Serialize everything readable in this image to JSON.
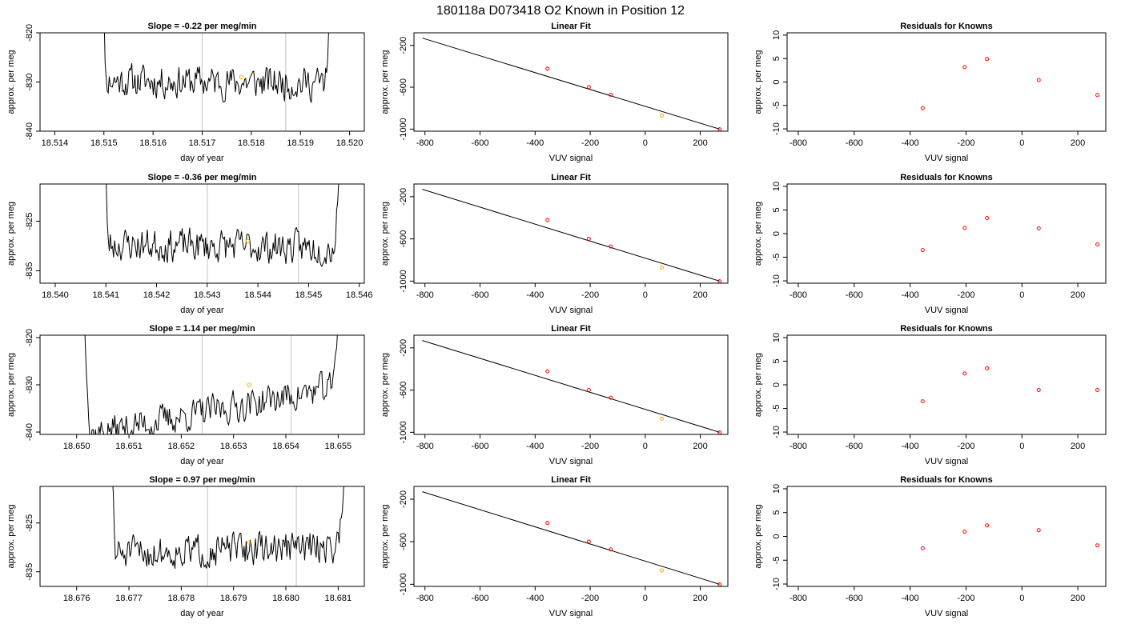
{
  "figure": {
    "title": "180118a     D073418   O2 Known in Position  12",
    "colors": {
      "trace": "#000000",
      "marker_line": "#cccccc",
      "point": "#ff0000",
      "highlight": "#ffa500",
      "axis": "#000000"
    }
  },
  "chart_data": [
    {
      "type": "line",
      "row": 0,
      "col": 0,
      "title": "Slope =  -0.22  per meg/min",
      "xlabel": "day of year",
      "ylabel": "approx. per meg",
      "xlim": [
        18.5137,
        18.5203
      ],
      "ylim": [
        -840,
        -820
      ],
      "xticks": [
        18.514,
        18.515,
        18.516,
        18.517,
        18.518,
        18.519,
        18.52
      ],
      "xtick_labels": [
        "18.514",
        "18.515",
        "18.516",
        "18.517",
        "18.518",
        "18.519",
        "18.520"
      ],
      "yticks": [
        -820,
        -830,
        -840
      ],
      "ytick_labels": [
        "-820",
        "-830",
        "-840"
      ],
      "x_start": 18.5149,
      "x_end": 18.5197,
      "y_baseline": -830,
      "trend": -0.6,
      "vlines": [
        18.517,
        18.5187
      ],
      "highlight_point": {
        "x": 18.5178,
        "y": -829
      },
      "seed": 11
    },
    {
      "type": "scatter",
      "row": 0,
      "col": 1,
      "title": "Linear Fit",
      "xlabel": "VUV signal",
      "ylabel": "approx. per meg",
      "xlim": [
        -840,
        300
      ],
      "ylim": [
        -1020,
        -80
      ],
      "xticks": [
        -800,
        -600,
        -400,
        -200,
        0,
        200
      ],
      "xtick_labels": [
        "-800",
        "-600",
        "-400",
        "-200",
        "0",
        "200"
      ],
      "yticks": [
        -200,
        -600,
        -1000
      ],
      "ytick_labels": [
        "-200",
        "-600",
        "-1000"
      ],
      "fit_line": {
        "x": [
          -810,
          270
        ],
        "y": [
          -130,
          -1000
        ]
      },
      "x": [
        -355,
        -205,
        -125,
        60,
        270
      ],
      "y": [
        -423,
        -599,
        -672,
        -871,
        -1002
      ],
      "highlight_index": 3
    },
    {
      "type": "scatter",
      "row": 0,
      "col": 2,
      "title": "Residuals for Knowns",
      "xlabel": "VUV signal",
      "ylabel": "approx. per meg",
      "xlim": [
        -840,
        300
      ],
      "ylim": [
        -10.5,
        10.5
      ],
      "xticks": [
        -800,
        -600,
        -400,
        -200,
        0,
        200
      ],
      "xtick_labels": [
        "-800",
        "-600",
        "-400",
        "-200",
        "0",
        "200"
      ],
      "yticks": [
        10,
        5,
        0,
        -5,
        -10
      ],
      "ytick_labels": [
        "10",
        "5",
        "0",
        "-5",
        "-10"
      ],
      "x": [
        -355,
        -205,
        -125,
        60,
        270
      ],
      "y": [
        -5.6,
        3.2,
        4.9,
        0.4,
        -2.8
      ]
    },
    {
      "type": "line",
      "row": 1,
      "col": 0,
      "title": "Slope =  -0.36  per meg/min",
      "xlabel": "day of year",
      "ylabel": "approx. per meg",
      "xlim": [
        18.5397,
        18.5461
      ],
      "ylim": [
        -837.5,
        -817.5
      ],
      "xticks": [
        18.54,
        18.541,
        18.542,
        18.543,
        18.544,
        18.545,
        18.546
      ],
      "xtick_labels": [
        "18.540",
        "18.541",
        "18.542",
        "18.543",
        "18.544",
        "18.545",
        "18.546"
      ],
      "yticks": [
        -825,
        -835
      ],
      "ytick_labels": [
        "-825",
        "-835"
      ],
      "x_start": 18.5409,
      "x_end": 18.5457,
      "y_baseline": -830,
      "trend": -0.8,
      "vlines": [
        18.543,
        18.5448
      ],
      "highlight_point": {
        "x": 18.5438,
        "y": -829
      },
      "seed": 23
    },
    {
      "type": "scatter",
      "row": 1,
      "col": 1,
      "title": "Linear Fit",
      "xlabel": "VUV signal",
      "ylabel": "approx. per meg",
      "xlim": [
        -840,
        300
      ],
      "ylim": [
        -1020,
        -80
      ],
      "xticks": [
        -800,
        -600,
        -400,
        -200,
        0,
        200
      ],
      "xtick_labels": [
        "-800",
        "-600",
        "-400",
        "-200",
        "0",
        "200"
      ],
      "yticks": [
        -200,
        -600,
        -1000
      ],
      "ytick_labels": [
        "-200",
        "-600",
        "-1000"
      ],
      "fit_line": {
        "x": [
          -810,
          270
        ],
        "y": [
          -130,
          -1000
        ]
      },
      "x": [
        -355,
        -205,
        -125,
        60,
        270
      ],
      "y": [
        -423,
        -599,
        -672,
        -871,
        -1002
      ],
      "highlight_index": 3
    },
    {
      "type": "scatter",
      "row": 1,
      "col": 2,
      "title": "Residuals for Knowns",
      "xlabel": "VUV signal",
      "ylabel": "approx. per meg",
      "xlim": [
        -840,
        300
      ],
      "ylim": [
        -10.5,
        10.5
      ],
      "xticks": [
        -800,
        -600,
        -400,
        -200,
        0,
        200
      ],
      "xtick_labels": [
        "-800",
        "-600",
        "-400",
        "-200",
        "0",
        "200"
      ],
      "yticks": [
        10,
        5,
        0,
        -5,
        -10
      ],
      "ytick_labels": [
        "10",
        "5",
        "0",
        "-5",
        "-10"
      ],
      "x": [
        -355,
        -205,
        -125,
        60,
        270
      ],
      "y": [
        -3.5,
        1.2,
        3.3,
        1.1,
        -2.3
      ]
    },
    {
      "type": "line",
      "row": 2,
      "col": 0,
      "title": "Slope =  1.14  per meg/min",
      "xlabel": "day of year",
      "ylabel": "approx. per meg",
      "xlim": [
        18.6493,
        18.6555
      ],
      "ylim": [
        -840.5,
        -819.5
      ],
      "xticks": [
        18.65,
        18.651,
        18.652,
        18.653,
        18.654,
        18.655
      ],
      "xtick_labels": [
        "18.650",
        "18.651",
        "18.652",
        "18.653",
        "18.654",
        "18.655"
      ],
      "yticks": [
        -820,
        -830,
        -840
      ],
      "ytick_labels": [
        "-820",
        "-830",
        "-840"
      ],
      "x_start": 18.6501,
      "x_end": 18.6551,
      "y_baseline": -835.5,
      "trend": 10.5,
      "vlines": [
        18.6524,
        18.6541
      ],
      "highlight_point": {
        "x": 18.6533,
        "y": -830
      },
      "seed": 37
    },
    {
      "type": "scatter",
      "row": 2,
      "col": 1,
      "title": "Linear Fit",
      "xlabel": "VUV signal",
      "ylabel": "approx. per meg",
      "xlim": [
        -840,
        300
      ],
      "ylim": [
        -1020,
        -80
      ],
      "xticks": [
        -800,
        -600,
        -400,
        -200,
        0,
        200
      ],
      "xtick_labels": [
        "-800",
        "-600",
        "-400",
        "-200",
        "0",
        "200"
      ],
      "yticks": [
        -200,
        -600,
        -1000
      ],
      "ytick_labels": [
        "-200",
        "-600",
        "-1000"
      ],
      "fit_line": {
        "x": [
          -810,
          270
        ],
        "y": [
          -130,
          -1000
        ]
      },
      "x": [
        -355,
        -205,
        -125,
        60,
        270
      ],
      "y": [
        -423,
        -599,
        -672,
        -871,
        -1002
      ],
      "highlight_index": 3
    },
    {
      "type": "scatter",
      "row": 2,
      "col": 2,
      "title": "Residuals for Knowns",
      "xlabel": "VUV signal",
      "ylabel": "approx. per meg",
      "xlim": [
        -840,
        300
      ],
      "ylim": [
        -10.5,
        10.5
      ],
      "xticks": [
        -800,
        -600,
        -400,
        -200,
        0,
        200
      ],
      "xtick_labels": [
        "-800",
        "-600",
        "-400",
        "-200",
        "0",
        "200"
      ],
      "yticks": [
        10,
        5,
        0,
        -5,
        -10
      ],
      "ytick_labels": [
        "10",
        "5",
        "0",
        "-5",
        "-10"
      ],
      "x": [
        -355,
        -205,
        -125,
        60,
        270
      ],
      "y": [
        -3.5,
        2.4,
        3.5,
        -1.1,
        -1.1
      ]
    },
    {
      "type": "line",
      "row": 3,
      "col": 0,
      "title": "Slope =  0.97  per meg/min",
      "xlabel": "day of year",
      "ylabel": "approx. per meg",
      "xlim": [
        18.6753,
        18.6815
      ],
      "ylim": [
        -838,
        -817.5
      ],
      "xticks": [
        18.676,
        18.677,
        18.678,
        18.679,
        18.68,
        18.681
      ],
      "xtick_labels": [
        "18.676",
        "18.677",
        "18.678",
        "18.679",
        "18.680",
        "18.681"
      ],
      "yticks": [
        -825,
        -835
      ],
      "ytick_labels": [
        "-825",
        "-835"
      ],
      "x_start": 18.6766,
      "x_end": 18.6812,
      "y_baseline": -830.5,
      "trend": 1.8,
      "vlines": [
        18.6785,
        18.6802
      ],
      "highlight_point": {
        "x": 18.6793,
        "y": -829
      },
      "seed": 51
    },
    {
      "type": "scatter",
      "row": 3,
      "col": 1,
      "title": "Linear Fit",
      "xlabel": "VUV signal",
      "ylabel": "approx. per meg",
      "xlim": [
        -840,
        300
      ],
      "ylim": [
        -1020,
        -80
      ],
      "xticks": [
        -800,
        -600,
        -400,
        -200,
        0,
        200
      ],
      "xtick_labels": [
        "-800",
        "-600",
        "-400",
        "-200",
        "0",
        "200"
      ],
      "yticks": [
        -200,
        -600,
        -1000
      ],
      "ytick_labels": [
        "-200",
        "-600",
        "-1000"
      ],
      "fit_line": {
        "x": [
          -810,
          270
        ],
        "y": [
          -130,
          -1000
        ]
      },
      "x": [
        -355,
        -205,
        -125,
        60,
        270
      ],
      "y": [
        -423,
        -599,
        -672,
        -871,
        -1002
      ],
      "highlight_index": 3
    },
    {
      "type": "scatter",
      "row": 3,
      "col": 2,
      "title": "Residuals for Knowns",
      "xlabel": "VUV signal",
      "ylabel": "approx. per meg",
      "xlim": [
        -840,
        300
      ],
      "ylim": [
        -10.5,
        10.5
      ],
      "xticks": [
        -800,
        -600,
        -400,
        -200,
        0,
        200
      ],
      "xtick_labels": [
        "-800",
        "-600",
        "-400",
        "-200",
        "0",
        "200"
      ],
      "yticks": [
        10,
        5,
        0,
        -5,
        -10
      ],
      "ytick_labels": [
        "10",
        "5",
        "0",
        "-5",
        "-10"
      ],
      "x": [
        -355,
        -205,
        -125,
        60,
        270
      ],
      "y": [
        -2.5,
        1.0,
        2.3,
        1.3,
        -1.9
      ]
    }
  ]
}
